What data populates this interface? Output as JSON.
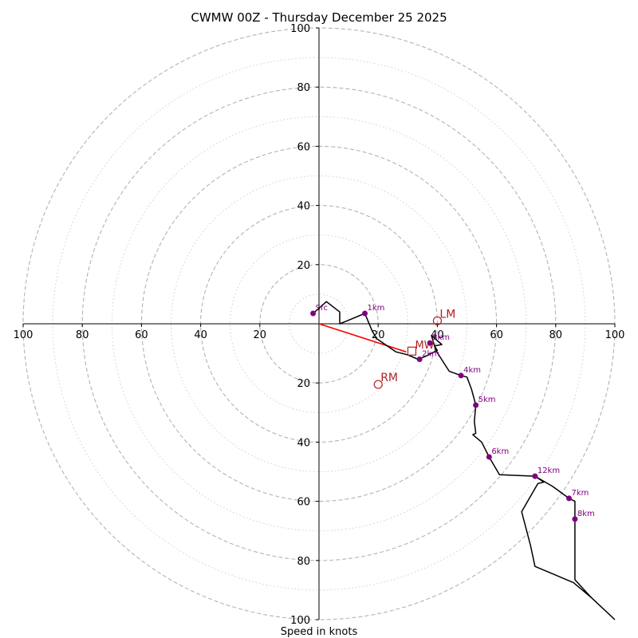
{
  "chart_data": {
    "type": "line",
    "title": "CWMW 00Z - Thursday December 25 2025",
    "xlabel": "Speed in knots",
    "xlim": [
      -100,
      100
    ],
    "ylim": [
      -100,
      100
    ],
    "rings_major": [
      20,
      40,
      60,
      80,
      100
    ],
    "rings_minor": [
      10,
      30,
      50,
      70,
      90
    ],
    "x_ticks": [
      {
        "value": -100,
        "label": "100"
      },
      {
        "value": -80,
        "label": "80"
      },
      {
        "value": -60,
        "label": "60"
      },
      {
        "value": -40,
        "label": "40"
      },
      {
        "value": -20,
        "label": "20"
      },
      {
        "value": 20,
        "label": "20"
      },
      {
        "value": 40,
        "label": "40"
      },
      {
        "value": 60,
        "label": "60"
      },
      {
        "value": 80,
        "label": "80"
      },
      {
        "value": 100,
        "label": "100"
      }
    ],
    "y_ticks": [
      {
        "value": 100,
        "label": "100"
      },
      {
        "value": 80,
        "label": "80"
      },
      {
        "value": 60,
        "label": "60"
      },
      {
        "value": 40,
        "label": "40"
      },
      {
        "value": 20,
        "label": "20"
      },
      {
        "value": -20,
        "label": "20"
      },
      {
        "value": -40,
        "label": "40"
      },
      {
        "value": -60,
        "label": "60"
      },
      {
        "value": -80,
        "label": "80"
      },
      {
        "value": -100,
        "label": "100"
      }
    ],
    "hodograph": [
      [
        -2,
        3.5
      ],
      [
        2.5,
        7.5
      ],
      [
        7,
        4
      ],
      [
        7,
        0
      ],
      [
        9.5,
        1
      ],
      [
        15.5,
        3.5
      ],
      [
        18,
        -2.5
      ],
      [
        19.5,
        -5
      ],
      [
        26,
        -9.5
      ],
      [
        30,
        -10.5
      ],
      [
        33.5,
        -12
      ],
      [
        36,
        -11
      ],
      [
        40,
        -9
      ],
      [
        39,
        -7.5
      ],
      [
        41.5,
        -7
      ],
      [
        38,
        -4
      ],
      [
        39.5,
        -9
      ],
      [
        44,
        -16
      ],
      [
        48,
        -17.5
      ],
      [
        50,
        -18
      ],
      [
        51.5,
        -22
      ],
      [
        53,
        -27.5
      ],
      [
        52.5,
        -33
      ],
      [
        53,
        -37
      ],
      [
        52,
        -37.5
      ],
      [
        55,
        -40
      ],
      [
        57.5,
        -45
      ],
      [
        61,
        -51
      ],
      [
        73,
        -51.5
      ],
      [
        76,
        -53.5
      ],
      [
        74,
        -54
      ],
      [
        68.5,
        -63.5
      ],
      [
        71.5,
        -75
      ],
      [
        73,
        -82
      ],
      [
        86,
        -87.5
      ],
      [
        92,
        -92.5
      ],
      [
        100,
        -100
      ]
    ],
    "hodograph_upper": [
      [
        73,
        -51.5
      ],
      [
        79,
        -55
      ],
      [
        84.5,
        -59
      ],
      [
        86.5,
        -60
      ],
      [
        86.5,
        -66
      ],
      [
        86.5,
        -86.5
      ],
      [
        92,
        -92.5
      ]
    ],
    "height_labels": [
      {
        "label": "Sfc",
        "x": -2,
        "y": 3.5
      },
      {
        "label": "1km",
        "x": 15.5,
        "y": 3.5
      },
      {
        "label": "2km",
        "x": 34,
        "y": -12
      },
      {
        "label": "3km",
        "x": 37.5,
        "y": -6.5
      },
      {
        "label": "4km",
        "x": 48,
        "y": -17.5
      },
      {
        "label": "5km",
        "x": 53,
        "y": -27.5
      },
      {
        "label": "6km",
        "x": 57.5,
        "y": -45
      },
      {
        "label": "12km",
        "x": 73,
        "y": -51.5
      },
      {
        "label": "7km",
        "x": 84.5,
        "y": -59
      },
      {
        "label": "8km",
        "x": 86.5,
        "y": -66
      }
    ],
    "storm_motion": [
      {
        "label": "LM",
        "x": 40,
        "y": 1
      },
      {
        "label": "RM",
        "x": 20,
        "y": -20.5
      }
    ],
    "mean_wind": {
      "label": "MW",
      "x": 29.5,
      "y": -9.5
    },
    "colors": {
      "hodograph": "#000000",
      "height_marker": "#800080",
      "storm_motion": "#b22222",
      "mean_wind_vector": "#ff0000",
      "grid": "#b3b3b3"
    }
  }
}
